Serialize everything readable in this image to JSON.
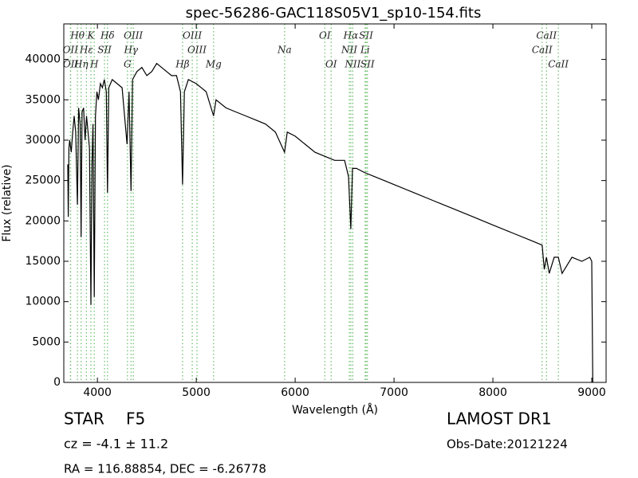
{
  "chart_data": {
    "type": "line",
    "title": "spec-56286-GAC118S05V1_sp10-154.fits",
    "x_label": "Wavelength (Å)",
    "y_label": "Flux (relative)",
    "xlim": [
      3660,
      9145
    ],
    "ylim": [
      0,
      44400
    ],
    "xticks": [
      4000,
      5000,
      6000,
      7000,
      8000,
      9000
    ],
    "yticks": [
      0,
      5000,
      10000,
      15000,
      20000,
      25000,
      30000,
      35000,
      40000
    ],
    "x": [
      3700,
      3705,
      3712,
      3720,
      3735,
      3750,
      3765,
      3780,
      3798,
      3810,
      3825,
      3835,
      3845,
      3860,
      3875,
      3890,
      3905,
      3920,
      3934,
      3945,
      3955,
      3968,
      3980,
      3995,
      4010,
      4030,
      4050,
      4070,
      4090,
      4102,
      4115,
      4150,
      4200,
      4250,
      4300,
      4320,
      4340,
      4355,
      4400,
      4450,
      4500,
      4550,
      4600,
      4650,
      4700,
      4750,
      4800,
      4840,
      4861,
      4880,
      4920,
      5000,
      5100,
      5175,
      5200,
      5300,
      5400,
      5500,
      5600,
      5700,
      5800,
      5893,
      5920,
      6000,
      6100,
      6200,
      6300,
      6400,
      6500,
      6540,
      6563,
      6580,
      6620,
      6700,
      6800,
      6900,
      7000,
      7200,
      7400,
      7600,
      7800,
      8000,
      8200,
      8400,
      8498,
      8520,
      8542,
      8570,
      8620,
      8662,
      8700,
      8800,
      8900,
      8980,
      9000,
      9010
    ],
    "series": [
      {
        "name": null,
        "color": "#000000",
        "values": [
          27000,
          20500,
          29000,
          30000,
          28500,
          31000,
          33000,
          31000,
          22000,
          34000,
          32000,
          18000,
          33500,
          34000,
          30000,
          33000,
          31000,
          29000,
          9600,
          27000,
          32000,
          10600,
          33000,
          36000,
          35000,
          37000,
          36500,
          37500,
          36000,
          23500,
          36500,
          37500,
          37000,
          36500,
          29500,
          36000,
          23700,
          37500,
          38500,
          39000,
          38000,
          38500,
          39500,
          39000,
          38500,
          38000,
          38000,
          36000,
          24500,
          36000,
          37500,
          37000,
          36000,
          33000,
          35000,
          34000,
          33500,
          33000,
          32500,
          32000,
          31000,
          28500,
          31000,
          30500,
          29500,
          28500,
          28000,
          27500,
          27500,
          25500,
          19000,
          26500,
          26500,
          26000,
          25500,
          25000,
          24500,
          23500,
          22500,
          21500,
          20500,
          19500,
          18500,
          17500,
          17000,
          14000,
          15500,
          13500,
          15500,
          15500,
          13500,
          15500,
          15000,
          15500,
          15000,
          0
        ]
      }
    ],
    "line_rows": [
      [
        {
          "label": "Hθ",
          "wavelength": 3798
        },
        {
          "label": "K",
          "wavelength": 3934
        },
        {
          "label": "Hδ",
          "wavelength": 4102
        },
        {
          "label": "OIII",
          "wavelength": 4363
        },
        {
          "label": "OIII",
          "wavelength": 4959
        },
        {
          "label": "OI",
          "wavelength": 6300
        },
        {
          "label": "Hα",
          "wavelength": 6563
        },
        {
          "label": "SII",
          "wavelength": 6717
        },
        {
          "label": "CaII",
          "wavelength": 8542
        }
      ],
      [
        {
          "label": "OII",
          "wavelength": 3727
        },
        {
          "label": "Hε",
          "wavelength": 3889
        },
        {
          "label": "SII",
          "wavelength": 4072
        },
        {
          "label": "Hγ",
          "wavelength": 4340
        },
        {
          "label": "OIII",
          "wavelength": 5007
        },
        {
          "label": "Na",
          "wavelength": 5893
        },
        {
          "label": "NII",
          "wavelength": 6548
        },
        {
          "label": "Li",
          "wavelength": 6708
        },
        {
          "label": "CaII",
          "wavelength": 8498
        }
      ],
      [
        {
          "label": "OII",
          "wavelength": 3729
        },
        {
          "label": "Hη",
          "wavelength": 3835
        },
        {
          "label": "H",
          "wavelength": 3968
        },
        {
          "label": "G",
          "wavelength": 4304
        },
        {
          "label": "Hβ",
          "wavelength": 4861
        },
        {
          "label": "Mg",
          "wavelength": 5175
        },
        {
          "label": "OI",
          "wavelength": 6364
        },
        {
          "label": "NII",
          "wavelength": 6583
        },
        {
          "label": "SII",
          "wavelength": 6731
        },
        {
          "label": "CaII",
          "wavelength": 8662
        }
      ]
    ],
    "line_color": "#66bb66",
    "footer": {
      "object": "STAR",
      "subclass": "F5",
      "cz": "cz = -4.1  ± 11.2",
      "coords": "RA = 116.88854, DEC = -6.26778",
      "survey": "LAMOST DR1",
      "obs_date": "Obs-Date:20121224"
    }
  }
}
